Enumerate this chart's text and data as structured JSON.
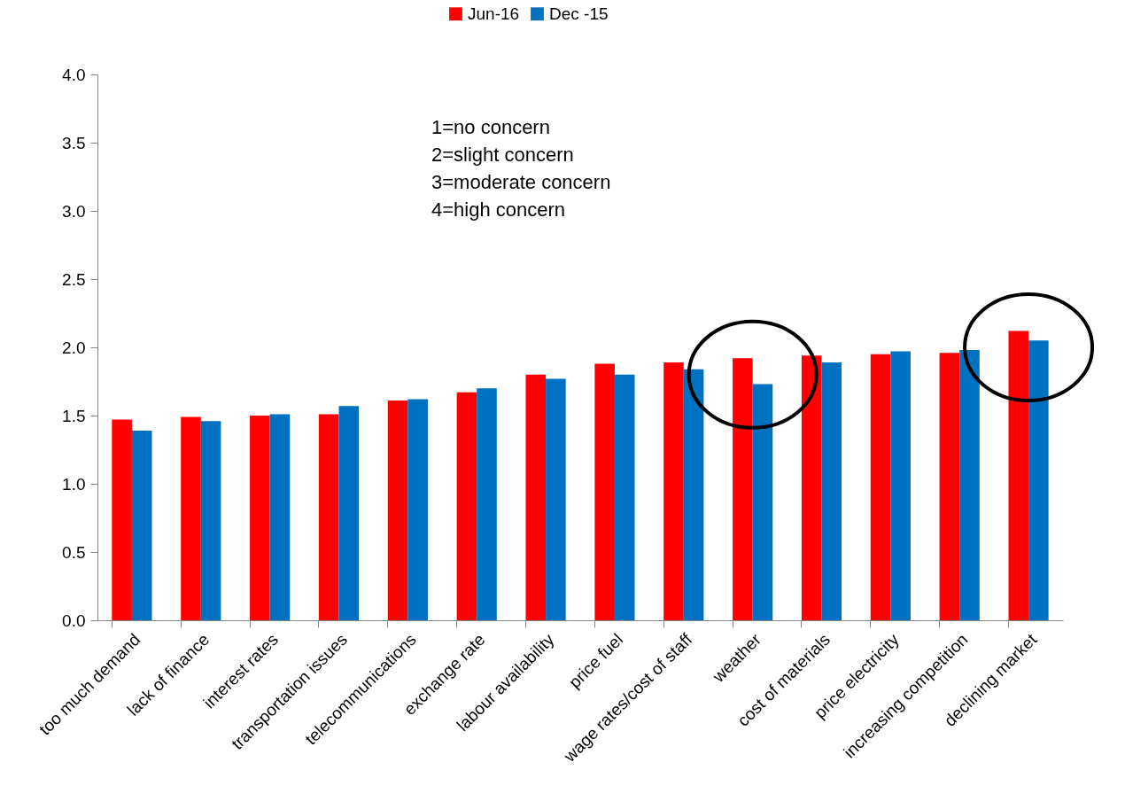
{
  "chart_data": {
    "type": "bar",
    "categories": [
      "too much demand",
      "lack of finance",
      "interest rates",
      "transportation issues",
      "telecommunications",
      "exchange rate",
      "labour availability",
      "price fuel",
      "wage rates/cost of staff",
      "weather",
      "cost of materials",
      "price electricity",
      "increasing competition",
      "declining market"
    ],
    "series": [
      {
        "name": "Jun-16",
        "color": "#ff0000",
        "values": [
          1.47,
          1.49,
          1.5,
          1.51,
          1.61,
          1.67,
          1.8,
          1.88,
          1.89,
          1.92,
          1.94,
          1.95,
          1.96,
          2.12
        ]
      },
      {
        "name": "Dec -15",
        "color": "#0070c0",
        "values": [
          1.39,
          1.46,
          1.51,
          1.57,
          1.62,
          1.7,
          1.77,
          1.8,
          1.84,
          1.73,
          1.89,
          1.97,
          1.98,
          2.05
        ]
      }
    ],
    "ylim": [
      0,
      4
    ],
    "yticks": [
      {
        "value": 0,
        "label": "0.0"
      },
      {
        "value": 0.5,
        "label": "0.5"
      },
      {
        "value": 1,
        "label": "1.0"
      },
      {
        "value": 1.5,
        "label": "1.5"
      },
      {
        "value": 2,
        "label": "2.0"
      },
      {
        "value": 2.5,
        "label": "2.5"
      },
      {
        "value": 3,
        "label": "3.0"
      },
      {
        "value": 3.5,
        "label": "3.5"
      },
      {
        "value": 4,
        "label": "4.0"
      }
    ],
    "annotations": [
      "1=no concern",
      "2=slight concern",
      "3=moderate concern",
      "4=high concern"
    ],
    "legend": "top",
    "grid": false
  }
}
